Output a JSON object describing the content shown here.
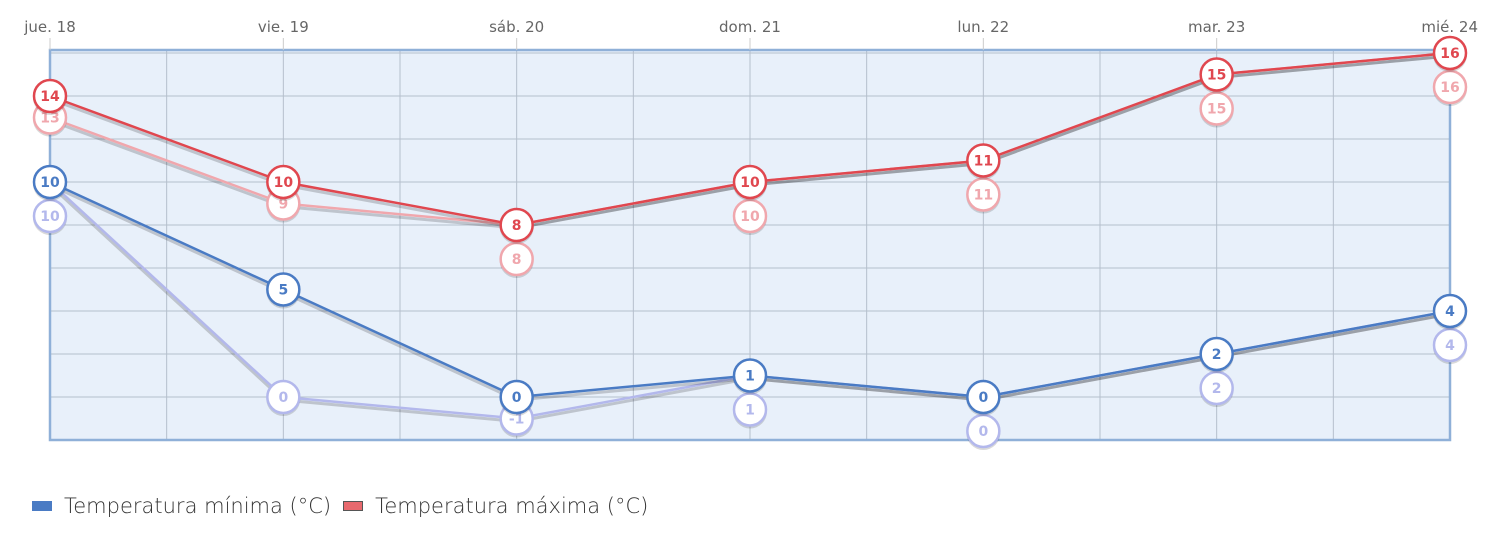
{
  "chart_data": {
    "type": "line",
    "categories": [
      "jue. 18",
      "vie. 19",
      "sáb. 20",
      "dom. 21",
      "lun. 22",
      "mar. 23",
      "mié. 24"
    ],
    "ylim": [
      -2,
      16
    ],
    "grid": true,
    "legend_position": "bottom-left",
    "series": [
      {
        "values": [
          10,
          0,
          -1,
          1,
          0,
          2,
          4
        ],
        "color": "#b3b8ec",
        "faded": true
      },
      {
        "values": [
          13,
          9,
          8,
          10,
          11,
          15,
          16
        ],
        "color": "#f0a7ad",
        "faded": true
      },
      {
        "name": "Temperatura mínima (°C)",
        "values": [
          10,
          5,
          0,
          1,
          0,
          2,
          4
        ],
        "color": "#4a7bc4"
      },
      {
        "name": "Temperatura máxima (°C)",
        "values": [
          14,
          10,
          8,
          10,
          11,
          15,
          16
        ],
        "color": "#e0474f"
      }
    ],
    "plot_background": "#e8f0fa",
    "border_color": "#8fb0d8"
  }
}
